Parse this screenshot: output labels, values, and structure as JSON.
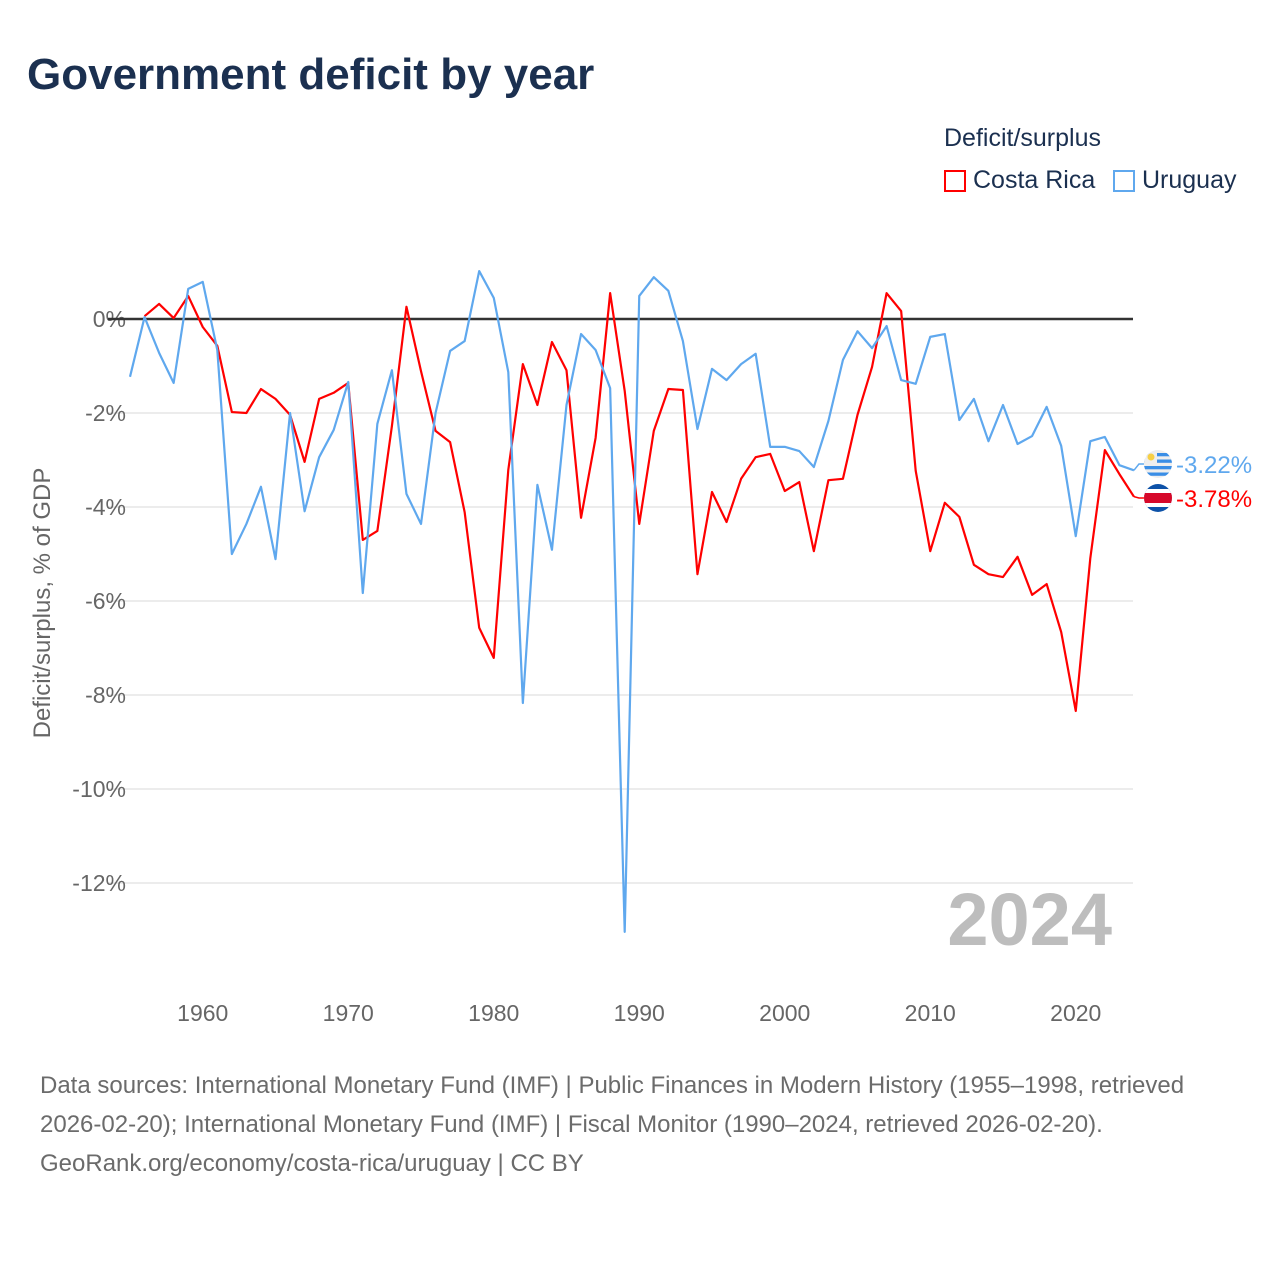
{
  "title": "Government deficit by year",
  "legend": {
    "title": "Deficit/surplus",
    "position": "top-right"
  },
  "year_watermark": "2024",
  "footer": {
    "sources": "Data sources: International Monetary Fund (IMF) | Public Finances in Modern History (1955–1998, retrieved 2026-02-20); International Monetary Fund (IMF) | Fiscal Monitor (1990–2024, retrieved 2026-02-20).",
    "credit": "GeoRank.org/economy/costa-rica/uruguay | CC BY"
  },
  "chart_data": {
    "type": "line",
    "title": "Government deficit by year",
    "xlabel": "",
    "ylabel": "Deficit/surplus, % of GDP",
    "xlim": [
      1955,
      2024
    ],
    "ylim": [
      -13.6,
      1.3
    ],
    "xticks": [
      1960,
      1970,
      1980,
      1990,
      2000,
      2010,
      2020
    ],
    "yticks": [
      0,
      -2,
      -4,
      -6,
      -8,
      -10,
      -12
    ],
    "ytick_labels": [
      "0%",
      "-2%",
      "-4%",
      "-6%",
      "-8%",
      "-10%",
      "-12%"
    ],
    "grid": true,
    "series": [
      {
        "name": "Costa Rica",
        "color": "#ff0000",
        "end_label": "-3.78%",
        "flag": "costa-rica-flag",
        "start_year": 1956,
        "values": [
          0.06,
          0.32,
          0.02,
          0.49,
          -0.17,
          -0.57,
          -1.98,
          -2.0,
          -1.49,
          -1.7,
          -2.04,
          -3.04,
          -1.7,
          -1.57,
          -1.36,
          -4.7,
          -4.51,
          -2.28,
          0.26,
          -1.11,
          -2.38,
          -2.62,
          -4.11,
          -6.57,
          -7.21,
          -3.21,
          -0.96,
          -1.83,
          -0.49,
          -1.09,
          -4.23,
          -2.53,
          0.55,
          -1.53,
          -4.36,
          -2.38,
          -1.49,
          -1.51,
          -5.43,
          -3.68,
          -4.32,
          -3.4,
          -2.94,
          -2.87,
          -3.66,
          -3.47,
          -4.94,
          -3.43,
          -3.4,
          -2.04,
          -1.02,
          0.55,
          0.17,
          -3.23,
          -4.94,
          -3.91,
          -4.21,
          -5.23,
          -5.43,
          -5.49,
          -5.06,
          -5.87,
          -5.64,
          -6.66,
          -8.34,
          -5.09,
          -2.79,
          -3.3,
          -3.78
        ]
      },
      {
        "name": "Uruguay",
        "color": "#5fa8ee",
        "end_label": "-3.22%",
        "flag": "uruguay-flag",
        "start_year": 1955,
        "values": [
          -1.23,
          0.04,
          -0.72,
          -1.36,
          0.64,
          0.79,
          -0.66,
          -5.0,
          -4.36,
          -3.57,
          -5.11,
          -2.0,
          -4.09,
          -2.94,
          -2.36,
          -1.34,
          -5.83,
          -2.23,
          -1.09,
          -3.72,
          -4.36,
          -2.0,
          -0.68,
          -0.47,
          1.02,
          0.45,
          -1.13,
          -8.17,
          -3.53,
          -4.91,
          -1.83,
          -0.32,
          -0.66,
          -1.47,
          -13.04,
          0.49,
          0.89,
          0.6,
          -0.47,
          -2.34,
          -1.06,
          -1.3,
          -0.96,
          -0.74,
          -2.72,
          -2.72,
          -2.81,
          -3.15,
          -2.17,
          -0.87,
          -0.26,
          -0.62,
          -0.15,
          -1.3,
          -1.38,
          -0.38,
          -0.32,
          -2.15,
          -1.7,
          -2.6,
          -1.83,
          -2.66,
          -2.49,
          -1.87,
          -2.7,
          -4.62,
          -2.6,
          -2.51,
          -3.11,
          -3.22
        ]
      }
    ]
  }
}
